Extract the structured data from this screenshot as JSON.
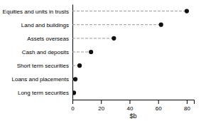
{
  "chart_data": {
    "type": "lollipop",
    "orientation": "horizontal",
    "categories": [
      "Equities and units in trusts",
      "Land and buildings",
      "Assets overseas",
      "Cash and deposits",
      "Short term securities",
      "Loans and placements",
      "Long term securities"
    ],
    "values": [
      80,
      62,
      29,
      13,
      5,
      2,
      1
    ],
    "xlim": [
      0,
      85
    ],
    "xticks": [
      0,
      20,
      40,
      60,
      80
    ],
    "xlabel": "$b",
    "color": "#111111",
    "marker": "circle",
    "line_style": "dashed"
  }
}
